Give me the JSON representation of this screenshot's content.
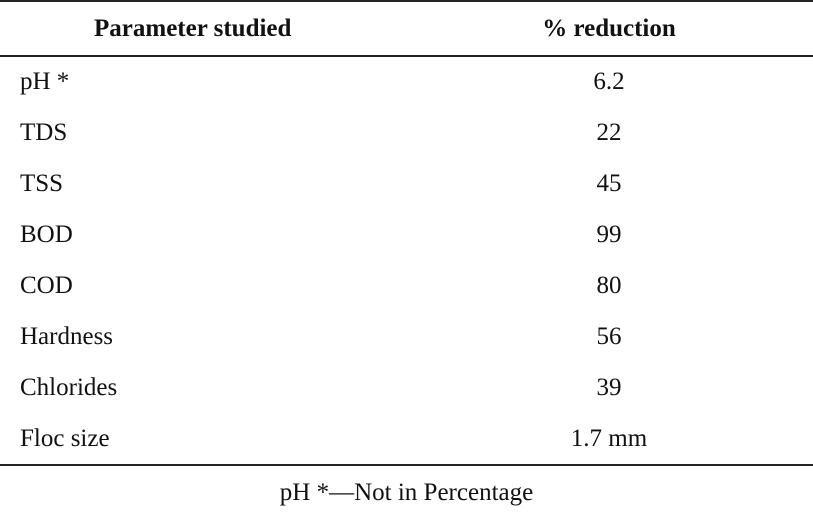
{
  "table": {
    "headers": [
      "Parameter studied",
      "% reduction"
    ],
    "rows": [
      {
        "parameter": "pH *",
        "value": "6.2"
      },
      {
        "parameter": "TDS",
        "value": "22"
      },
      {
        "parameter": "TSS",
        "value": "45"
      },
      {
        "parameter": "BOD",
        "value": "99"
      },
      {
        "parameter": "COD",
        "value": "80"
      },
      {
        "parameter": "Hardness",
        "value": "56"
      },
      {
        "parameter": "Chlorides",
        "value": "39"
      },
      {
        "parameter": "Floc size",
        "value": "1.7 mm"
      }
    ]
  },
  "footnote": "pH *—Not in Percentage"
}
